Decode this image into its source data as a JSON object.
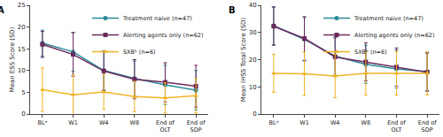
{
  "chart_data": [
    {
      "type": "line",
      "title": "A",
      "categories": [
        "BLᵃ",
        "W1",
        "W4",
        "W8",
        "End of OLT",
        "End of SDP"
      ],
      "ylabel": "Mean ESS Score (SD)",
      "ylim": [
        0,
        25
      ],
      "yticks": [
        0,
        5,
        10,
        15,
        20,
        25
      ],
      "legend": "upper right",
      "series": [
        {
          "name": "Treatment naive (n=47)",
          "color": "#2a8c99",
          "marker": "circle",
          "values": [
            16.3,
            14.3,
            10.0,
            8.2,
            6.7,
            5.5
          ],
          "sd": [
            3.0,
            4.5,
            4.5,
            4.0,
            4.5,
            4.5
          ]
        },
        {
          "name": "Alerting agents only (n=62)",
          "color": "#6b2a5e",
          "marker": "square",
          "values": [
            16.0,
            13.7,
            9.9,
            8.0,
            7.3,
            6.4
          ],
          "sd": [
            3.0,
            5.0,
            4.5,
            4.5,
            4.5,
            4.8
          ]
        },
        {
          "name": "SXBᵇ (n=6)",
          "color": "#f0b323",
          "marker": "triangle-up",
          "values": [
            5.6,
            4.4,
            5.1,
            4.0,
            3.7,
            4.2
          ],
          "sd": [
            5.0,
            4.6,
            4.0,
            3.5,
            3.5,
            4.0
          ]
        }
      ]
    },
    {
      "type": "line",
      "title": "B",
      "categories": [
        "BLᵃ",
        "W1",
        "W4",
        "W8",
        "End of OLT",
        "End of SDP"
      ],
      "ylabel": "Mean IHSS Total Score (SD)",
      "ylim": [
        0,
        40
      ],
      "yticks": [
        0,
        10,
        20,
        30,
        40
      ],
      "legend": "upper right",
      "series": [
        {
          "name": "Treatment naive (n=47)",
          "color": "#2a8c99",
          "marker": "circle",
          "values": [
            32.5,
            27.5,
            21.3,
            18.3,
            16.6,
            15.6
          ],
          "sd": [
            7.0,
            8.0,
            7.0,
            7.0,
            7.0,
            7.0
          ]
        },
        {
          "name": "Alerting agents only (n=62)",
          "color": "#6b2a5e",
          "marker": "square",
          "values": [
            32.3,
            27.8,
            21.0,
            19.2,
            17.3,
            15.4
          ],
          "sd": [
            7.0,
            8.0,
            7.0,
            7.0,
            7.0,
            7.0
          ]
        },
        {
          "name": "SXBᵇ (n=6)",
          "color": "#f0b323",
          "marker": "triangle-up",
          "values": [
            15.0,
            14.8,
            14.0,
            15.0,
            15.0,
            15.0
          ],
          "sd": [
            7.0,
            8.0,
            8.0,
            8.0,
            8.0,
            8.0
          ]
        }
      ]
    }
  ]
}
